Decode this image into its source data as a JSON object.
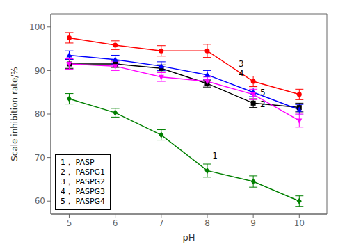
{
  "chart_data": {
    "type": "line",
    "x": [
      5,
      6,
      7,
      8,
      9,
      10
    ],
    "series": [
      {
        "name": "1， PASP",
        "color": "#008000",
        "marker": "diamond",
        "values": [
          83.5,
          80.3,
          75.2,
          67.0,
          64.5,
          60.0
        ],
        "errors": [
          1.2,
          1.0,
          1.2,
          1.5,
          1.3,
          1.2
        ]
      },
      {
        "name": "2， PASPG1",
        "color": "#000000",
        "marker": "square",
        "values": [
          91.5,
          91.5,
          90.5,
          87.0,
          82.5,
          81.5
        ],
        "errors": [
          1.0,
          0.8,
          0.8,
          0.8,
          1.0,
          1.0
        ]
      },
      {
        "name": "3， PASPG2",
        "color": "#FF0000",
        "marker": "circle",
        "values": [
          97.5,
          95.8,
          94.5,
          94.5,
          87.5,
          84.5
        ],
        "errors": [
          1.2,
          1.0,
          1.2,
          1.5,
          1.2,
          1.2
        ]
      },
      {
        "name": "4， PASPG3",
        "color": "#0000FF",
        "marker": "triangle_up",
        "values": [
          93.5,
          92.5,
          91.0,
          89.0,
          85.0,
          81.0
        ],
        "errors": [
          1.0,
          1.0,
          1.0,
          1.0,
          1.0,
          1.2
        ]
      },
      {
        "name": "5， PASPG4",
        "color": "#FF00FF",
        "marker": "triangle_down",
        "values": [
          91.5,
          91.0,
          88.5,
          87.5,
          84.5,
          78.5
        ],
        "errors": [
          1.2,
          1.0,
          1.0,
          1.0,
          1.2,
          1.5
        ]
      }
    ],
    "xlabel": "pH",
    "ylabel": "Scale inhibition rate/%",
    "xlim": [
      4.6,
      10.6
    ],
    "ylim": [
      57,
      103
    ],
    "xticks": [
      5,
      6,
      7,
      8,
      9,
      10
    ],
    "yticks": [
      60,
      70,
      80,
      90,
      100
    ],
    "annotations": [
      {
        "text": "1",
        "x": 8.08,
        "y": 70.5
      },
      {
        "text": "2",
        "x": 9.12,
        "y": 82.3
      },
      {
        "text": "3",
        "x": 8.65,
        "y": 91.5
      },
      {
        "text": "4",
        "x": 8.65,
        "y": 89.3
      },
      {
        "text": "5",
        "x": 9.12,
        "y": 85.0
      }
    ],
    "legend": "lower left"
  }
}
